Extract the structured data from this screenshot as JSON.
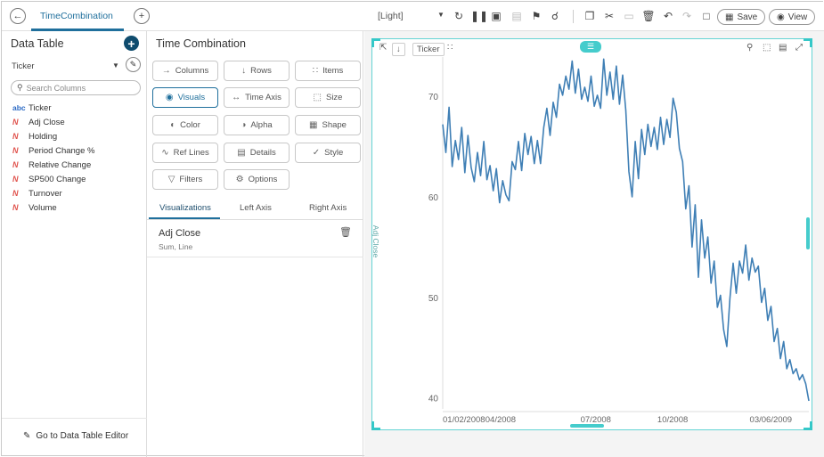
{
  "topbar": {
    "tab_title": "TimeCombination",
    "theme": "[Light]",
    "save_label": "Save",
    "view_label": "View"
  },
  "data_table": {
    "title": "Data Table",
    "selected_column": "Ticker",
    "search_placeholder": "Search Columns",
    "columns": [
      {
        "label": "Ticker",
        "type": "text"
      },
      {
        "label": "Adj Close",
        "type": "numeric"
      },
      {
        "label": "Holding",
        "type": "numeric"
      },
      {
        "label": "Period Change %",
        "type": "numeric"
      },
      {
        "label": "Relative Change",
        "type": "numeric"
      },
      {
        "label": "SP500 Change",
        "type": "numeric"
      },
      {
        "label": "Turnover",
        "type": "numeric"
      },
      {
        "label": "Volume",
        "type": "numeric"
      }
    ],
    "footer_link": "Go to Data Table Editor"
  },
  "settings": {
    "title": "Time Combination",
    "buttons": {
      "columns": "Columns",
      "rows": "Rows",
      "items": "Items",
      "visuals": "Visuals",
      "time_axis": "Time Axis",
      "size": "Size",
      "color": "Color",
      "alpha": "Alpha",
      "shape": "Shape",
      "ref_lines": "Ref Lines",
      "details": "Details",
      "style": "Style",
      "filters": "Filters",
      "options": "Options"
    },
    "sub_tabs": [
      "Visualizations",
      "Left Axis",
      "Right Axis"
    ],
    "visualization": {
      "name": "Adj Close",
      "detail": "Sum, Line"
    }
  },
  "canvas": {
    "ticker_chip": "Ticker",
    "accent_color": "#45cccc",
    "line_color": "#3f7fb5"
  },
  "chart_data": {
    "type": "line",
    "ylabel": "Adj Close",
    "ylim": [
      39,
      74
    ],
    "y_ticks": [
      40,
      50,
      60,
      70
    ],
    "x_ticks": [
      "01/02/2008",
      "04/2008",
      "07/2008",
      "10/2008",
      "03/06/2009"
    ],
    "x_tick_positions": [
      0,
      0.16,
      0.42,
      0.63,
      0.96
    ],
    "series": [
      {
        "values": [
          67.3,
          64.5,
          69.0,
          63.1,
          65.7,
          63.8,
          67.0,
          62.5,
          66.2,
          63.0,
          61.6,
          64.5,
          62.2,
          65.6,
          61.8,
          63.2,
          60.7,
          62.9,
          59.5,
          61.7,
          60.3,
          59.7,
          63.6,
          62.8,
          65.6,
          62.7,
          66.4,
          64.3,
          66.1,
          63.4,
          65.7,
          63.4,
          67.0,
          68.9,
          66.2,
          69.5,
          68.0,
          71.3,
          70.2,
          72.1,
          70.8,
          73.6,
          70.4,
          72.8,
          69.8,
          71.0,
          69.6,
          72.1,
          69.1,
          70.2,
          68.9,
          73.8,
          70.2,
          72.5,
          69.8,
          73.1,
          69.3,
          72.2,
          68.7,
          62.6,
          60.1,
          65.6,
          61.9,
          66.8,
          64.3,
          67.3,
          65.1,
          67.0,
          64.8,
          68.0,
          65.3,
          67.8,
          66.0,
          69.9,
          68.5,
          64.9,
          63.6,
          58.9,
          61.2,
          55.1,
          59.3,
          52.1,
          57.8,
          54.0,
          56.1,
          51.5,
          53.7,
          49.1,
          50.3,
          46.9,
          45.2,
          50.0,
          53.5,
          50.5,
          53.7,
          52.5,
          55.3,
          51.8,
          54.0,
          52.6,
          53.2,
          49.6,
          51.0,
          47.8,
          49.2,
          45.7,
          47.0,
          44.0,
          45.7,
          43.0,
          43.9,
          42.5,
          43.0,
          41.9,
          42.4,
          41.5,
          39.8
        ]
      }
    ]
  }
}
